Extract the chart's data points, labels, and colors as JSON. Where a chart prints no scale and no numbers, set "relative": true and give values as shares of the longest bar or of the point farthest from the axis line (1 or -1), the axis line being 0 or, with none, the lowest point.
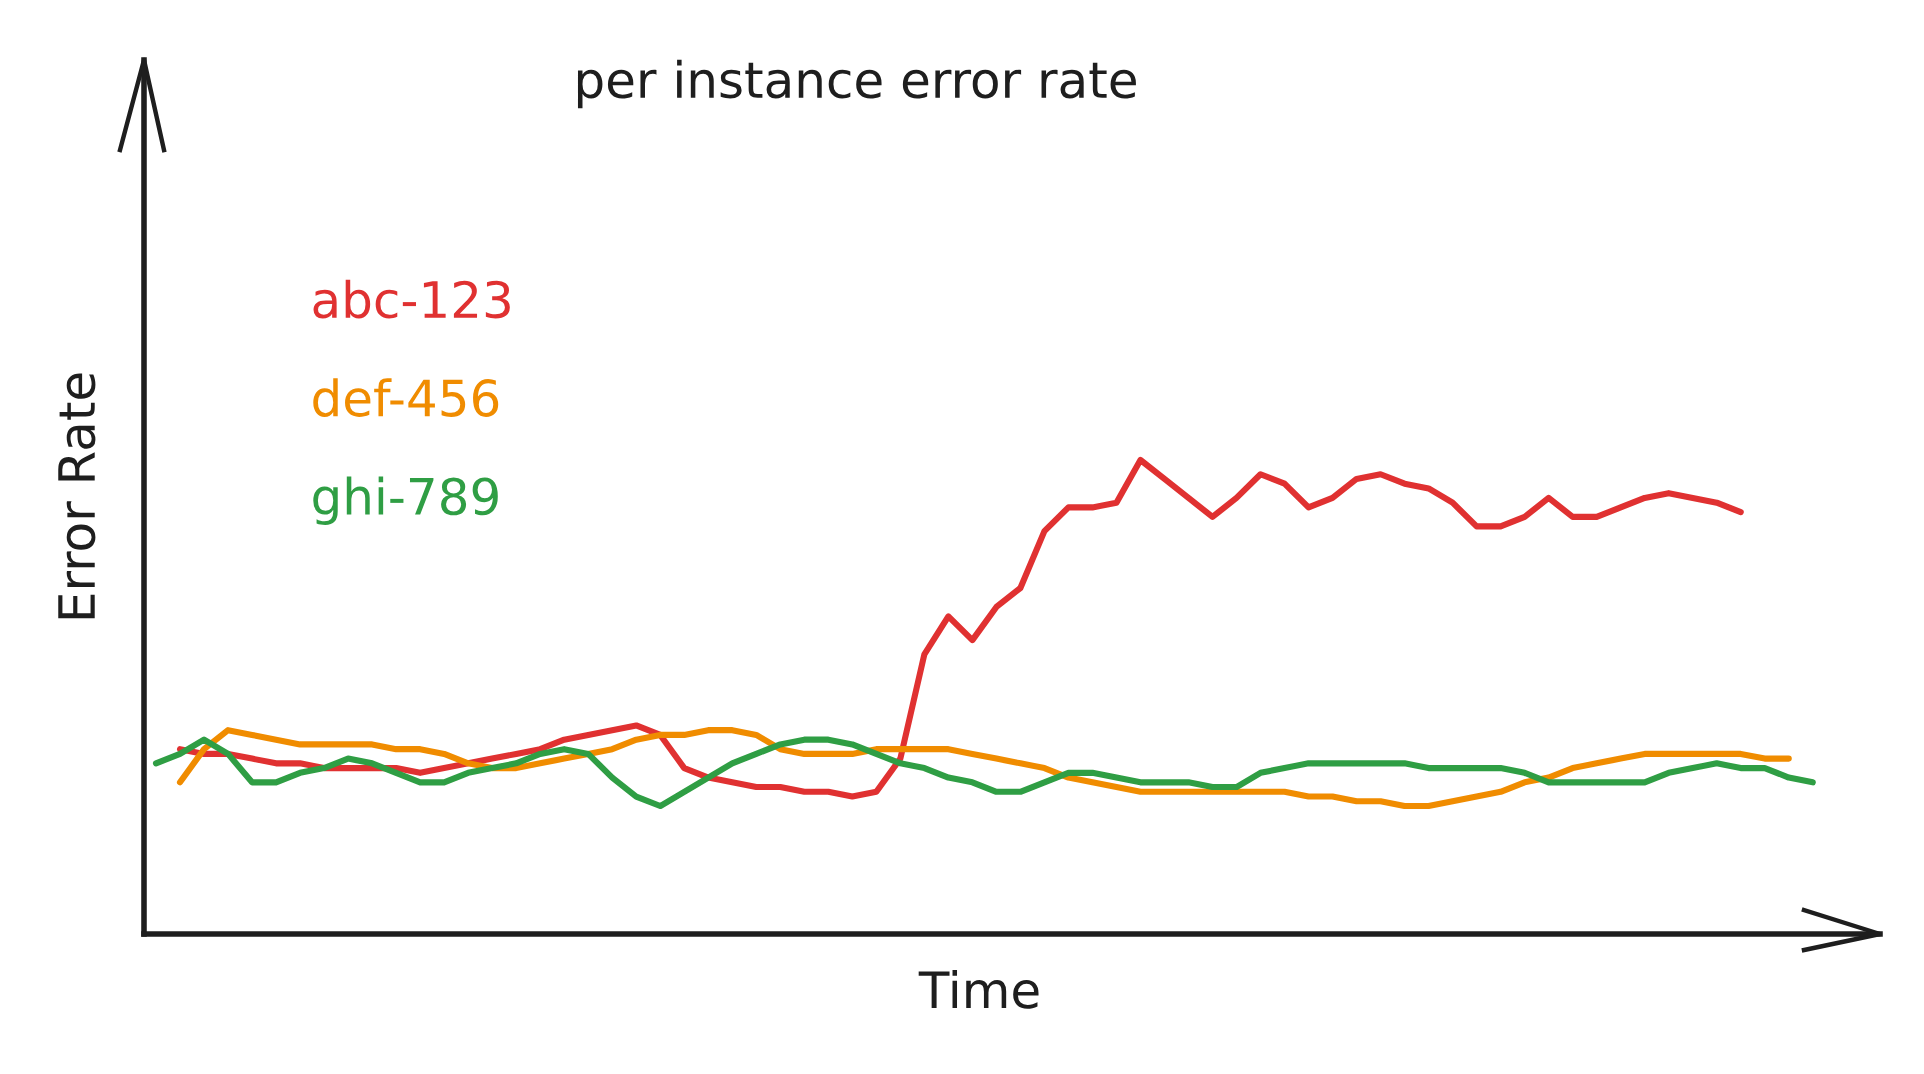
{
  "chart_data": {
    "type": "line",
    "title": "per instance error rate",
    "xlabel": "Time",
    "ylabel": "Error Rate",
    "relative": true,
    "legend": "top left",
    "categories": [
      null,
      null,
      null,
      null,
      null,
      null,
      null,
      null,
      null,
      null,
      null,
      null,
      null,
      null,
      null,
      null,
      null,
      null,
      null,
      null,
      null,
      null,
      null,
      null,
      null,
      null,
      null,
      null,
      null,
      null,
      null,
      null,
      null,
      null,
      null,
      null,
      null,
      null,
      null,
      null,
      null,
      null,
      null,
      null,
      null,
      null,
      null,
      null,
      null,
      null,
      null,
      null,
      null,
      null,
      null,
      null,
      null,
      null,
      null,
      null,
      null,
      null,
      null,
      null,
      null,
      null,
      null,
      null,
      null,
      null
    ],
    "series": [
      {
        "name": "abc-123",
        "color": "#e03131",
        "values": [
          null,
          0.39,
          0.38,
          0.38,
          0.37,
          0.36,
          0.36,
          0.35,
          0.35,
          0.35,
          0.35,
          0.34,
          0.35,
          0.36,
          0.37,
          0.38,
          0.39,
          0.41,
          0.42,
          0.43,
          0.44,
          0.42,
          0.35,
          0.33,
          0.32,
          0.31,
          0.31,
          0.3,
          0.3,
          0.29,
          0.3,
          0.37,
          0.59,
          0.67,
          0.62,
          0.69,
          0.73,
          0.85,
          0.9,
          0.9,
          0.91,
          1,
          0.96,
          0.92,
          0.88,
          0.92,
          0.97,
          0.95,
          0.9,
          0.92,
          0.96,
          0.97,
          0.95,
          0.94,
          0.91,
          0.86,
          0.86,
          0.88,
          0.92,
          0.88,
          0.88,
          0.9,
          0.92,
          0.93,
          0.92,
          0.91,
          0.89,
          null,
          null,
          null
        ]
      },
      {
        "name": "def-456",
        "color": "#f08c00",
        "values": [
          null,
          0.32,
          0.39,
          0.43,
          0.42,
          0.41,
          0.4,
          0.4,
          0.4,
          0.4,
          0.39,
          0.39,
          0.38,
          0.36,
          0.35,
          0.35,
          0.36,
          0.37,
          0.38,
          0.39,
          0.41,
          0.42,
          0.42,
          0.43,
          0.43,
          0.42,
          0.39,
          0.38,
          0.38,
          0.38,
          0.39,
          0.39,
          0.39,
          0.39,
          0.38,
          0.37,
          0.36,
          0.35,
          0.33,
          0.32,
          0.31,
          0.3,
          0.3,
          0.3,
          0.3,
          0.3,
          0.3,
          0.3,
          0.29,
          0.29,
          0.28,
          0.28,
          0.27,
          0.27,
          0.28,
          0.29,
          0.3,
          0.32,
          0.33,
          0.35,
          0.36,
          0.37,
          0.38,
          0.38,
          0.38,
          0.38,
          0.38,
          0.37,
          0.37,
          null
        ]
      },
      {
        "name": "ghi-789",
        "color": "#2f9e44",
        "values": [
          0.36,
          0.38,
          0.41,
          0.38,
          0.32,
          0.32,
          0.34,
          0.35,
          0.37,
          0.36,
          0.34,
          0.32,
          0.32,
          0.34,
          0.35,
          0.36,
          0.38,
          0.39,
          0.38,
          0.33,
          0.29,
          0.27,
          0.3,
          0.33,
          0.36,
          0.38,
          0.4,
          0.41,
          0.41,
          0.4,
          0.38,
          0.36,
          0.35,
          0.33,
          0.32,
          0.3,
          0.3,
          0.32,
          0.34,
          0.34,
          0.33,
          0.32,
          0.32,
          0.32,
          0.31,
          0.31,
          0.34,
          0.35,
          0.36,
          0.36,
          0.36,
          0.36,
          0.36,
          0.35,
          0.35,
          0.35,
          0.35,
          0.34,
          0.32,
          0.32,
          0.32,
          0.32,
          0.32,
          0.34,
          0.35,
          0.36,
          0.35,
          0.35,
          0.33,
          0.32
        ]
      }
    ]
  }
}
